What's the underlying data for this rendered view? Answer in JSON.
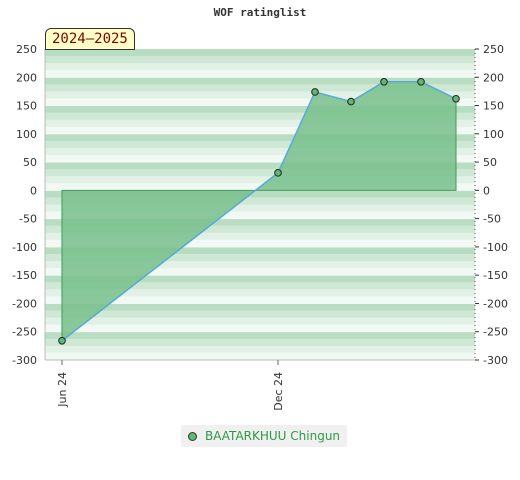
{
  "chart_data": {
    "type": "area",
    "title": "WOF ratinglist",
    "badge": "2024–2025",
    "xlabel": "",
    "ylabel": "",
    "ylim": [
      -300,
      250
    ],
    "yticks": [
      250,
      200,
      150,
      100,
      50,
      0,
      -50,
      -100,
      -150,
      -200,
      -250,
      -300
    ],
    "xtick_labels": [
      {
        "label": "Jun 24",
        "index": 0
      },
      {
        "label": "Dec 24",
        "index": 1
      }
    ],
    "series": [
      {
        "name": "BAATARKHUU Chingun",
        "values": [
          -266,
          31,
          174,
          157,
          192,
          192,
          162
        ]
      }
    ],
    "legend_position": "bottom-center",
    "grid": true,
    "colors": {
      "fill": "#78c08c",
      "line": "#5aaad8",
      "marker": "#5fb873",
      "legend_text": "#2e9a45",
      "band_dark": "#c4e2cc",
      "band_light": "#eef7f0"
    }
  }
}
